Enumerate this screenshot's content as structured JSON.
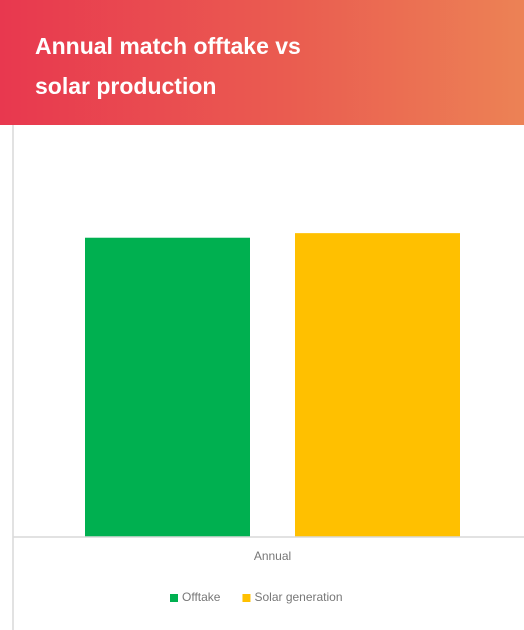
{
  "chart_data": {
    "type": "bar",
    "title": "Annual match offtake vs solar production",
    "categories": [
      "Annual"
    ],
    "series": [
      {
        "name": "Offtake",
        "color": "#00B050",
        "values": [
          98
        ]
      },
      {
        "name": "Solar generation",
        "color": "#FFC000",
        "values": [
          99.5
        ]
      }
    ],
    "ylim": [
      0,
      130
    ],
    "legend": "bottom"
  }
}
